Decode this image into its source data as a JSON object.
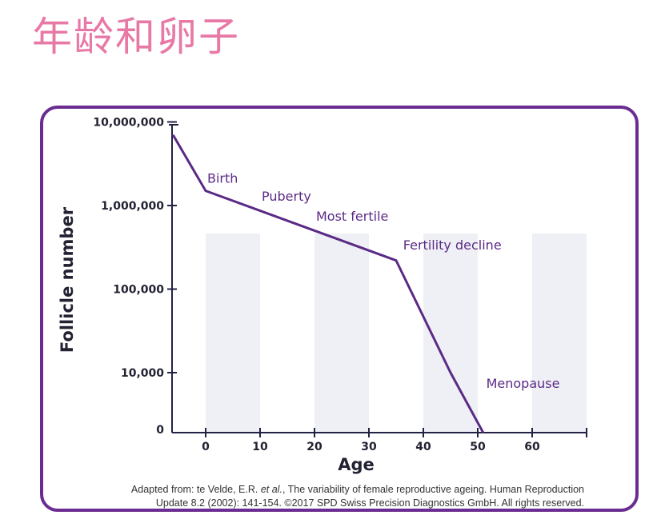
{
  "title": "年龄和卵子",
  "colors": {
    "title": "#e879a6",
    "frame": "#6b2c91",
    "line": "#5b2a86",
    "annotation": "#5b2a86",
    "band": "#eef0f5",
    "axis": "#222244"
  },
  "chart_data": {
    "type": "line",
    "xlabel": "Age",
    "ylabel": "Follicle number",
    "x_ticks": [
      0,
      10,
      20,
      30,
      40,
      50,
      60
    ],
    "x_tick_labels": [
      "0",
      "10",
      "20",
      "30",
      "40",
      "50",
      "60"
    ],
    "xlim": [
      -6,
      70
    ],
    "y_scale": "log",
    "y_ticks": [
      0,
      10000,
      100000,
      1000000,
      10000000
    ],
    "y_tick_labels": [
      "0",
      "10,000",
      "100,000",
      "1,000,000",
      "10,000,000"
    ],
    "series": [
      {
        "x": [
          -6,
          0,
          35,
          45,
          51
        ],
        "y": [
          7000000,
          1500000,
          220000,
          10000,
          0
        ]
      }
    ],
    "annotations": [
      {
        "text": "Birth",
        "x": 0,
        "y": 1500000
      },
      {
        "text": "Puberty",
        "x": 10,
        "y": 1000000
      },
      {
        "text": "Most fertile",
        "x": 20,
        "y": 600000
      },
      {
        "text": "Fertility decline",
        "x": 36,
        "y": 260000
      },
      {
        "text": "Menopause",
        "x": 52,
        "y": 7000
      }
    ],
    "shaded_bands": [
      [
        0,
        10
      ],
      [
        20,
        30
      ],
      [
        40,
        50
      ],
      [
        60,
        70
      ]
    ],
    "grid": false,
    "legend": "none"
  },
  "caption": {
    "line1_pre": "Adapted from: te Velde, E.R. ",
    "line1_ital": "et al.",
    "line1_post": ", The variability of female reproductive ageing. Human Reproduction",
    "line2": "Update 8.2 (2002): 141-154. ©2017 SPD Swiss Precision Diagnostics GmbH. All rights reserved."
  }
}
